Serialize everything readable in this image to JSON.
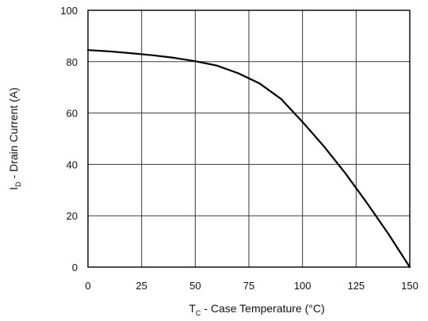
{
  "chart_data": {
    "type": "line",
    "title": "",
    "xlabel": {
      "symbol": "T",
      "subscript": "C",
      "text": " - Case Temperature (°C)"
    },
    "ylabel": {
      "symbol": "I",
      "subscript": "D",
      "text": " - Drain Current (A)"
    },
    "xlim": [
      0,
      150
    ],
    "ylim": [
      0,
      100
    ],
    "xticks": [
      0,
      25,
      50,
      75,
      100,
      125,
      150
    ],
    "yticks": [
      0,
      20,
      40,
      60,
      80,
      100
    ],
    "grid": true,
    "series": [
      {
        "color": "#000000",
        "points": [
          [
            0,
            84.5
          ],
          [
            10,
            84
          ],
          [
            20,
            83.3
          ],
          [
            30,
            82.5
          ],
          [
            40,
            81.5
          ],
          [
            50,
            80.2
          ],
          [
            60,
            78.5
          ],
          [
            70,
            75.5
          ],
          [
            80,
            71.5
          ],
          [
            90,
            65.5
          ],
          [
            100,
            56.5
          ],
          [
            110,
            47
          ],
          [
            120,
            36.5
          ],
          [
            130,
            25
          ],
          [
            140,
            13
          ],
          [
            150,
            0
          ]
        ]
      }
    ]
  }
}
